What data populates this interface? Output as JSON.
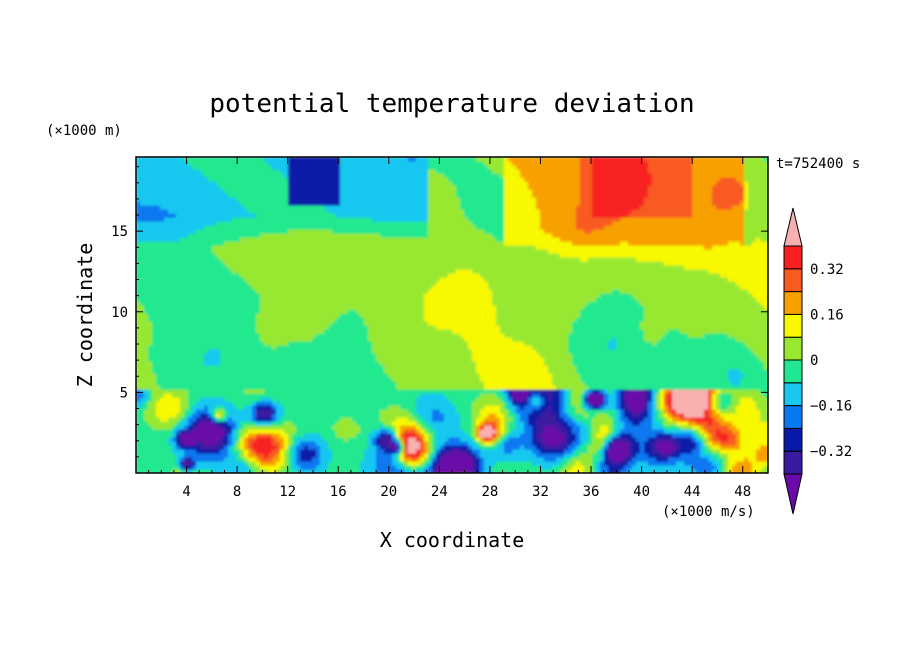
{
  "chart_data": {
    "type": "heatmap",
    "title": "potential temperature deviation",
    "xlabel": "X coordinate",
    "ylabel": "Z coordinate",
    "x_unit": "(×1000 m/s)",
    "y_unit": "(×1000 m)",
    "time_label": "t=752400 s",
    "xlim": [
      0,
      50
    ],
    "ylim": [
      0,
      19.6
    ],
    "x_ticks": [
      4,
      8,
      12,
      16,
      20,
      24,
      28,
      32,
      36,
      40,
      44,
      48
    ],
    "y_ticks": [
      5,
      10,
      15
    ],
    "colorbar": {
      "levels": [
        -0.4,
        -0.32,
        -0.24,
        -0.16,
        -0.08,
        0,
        0.08,
        0.16,
        0.24,
        0.32,
        0.4
      ],
      "tick_labels": [
        "0.32",
        "0.16",
        "0",
        "−0.16",
        "−0.32"
      ],
      "tick_values": [
        0.32,
        0.16,
        0,
        -0.16,
        -0.32
      ],
      "colors": [
        "#6a0aa8",
        "#3a1aa0",
        "#0a1aa8",
        "#0a78f0",
        "#18c8f0",
        "#20e890",
        "#98e830",
        "#f8f800",
        "#f8a000",
        "#f85a20",
        "#f82020",
        "#f8b0b0"
      ]
    },
    "field_description_regions": [
      {
        "x": [
          0,
          50
        ],
        "z": [
          5.3,
          19.6
        ],
        "value": 0.05
      },
      {
        "x": [
          3,
          22
        ],
        "z": [
          15,
          19.6
        ],
        "value": -0.12
      },
      {
        "x": [
          12,
          16
        ],
        "z": [
          17,
          19.6
        ],
        "value": -0.3
      },
      {
        "x": [
          30,
          48
        ],
        "z": [
          15,
          19.6
        ],
        "value": 0.18
      },
      {
        "x": [
          36,
          44
        ],
        "z": [
          17,
          19.6
        ],
        "value": 0.24
      },
      {
        "x": [
          0,
          50
        ],
        "z": [
          0,
          5.3
        ],
        "value": -0.05
      }
    ]
  }
}
